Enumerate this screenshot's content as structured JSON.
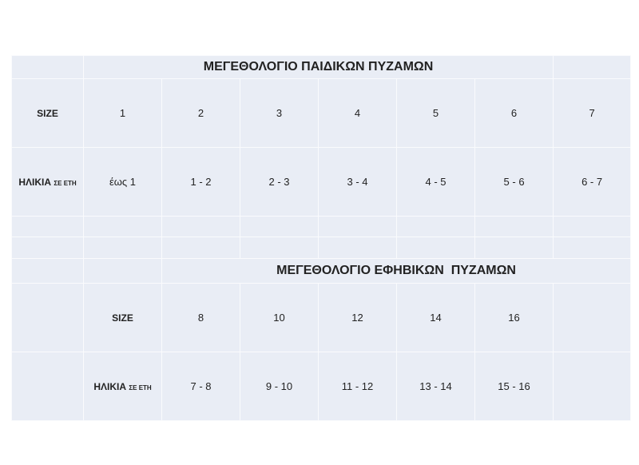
{
  "kids_table": {
    "title": "ΜΕΓΕΘΟΛΟΓΙΟ ΠΑΙΔΙΚΩΝ ΠΥΖΑΜΩΝ",
    "size_label": "SIZE",
    "age_label": "ΗΛΙΚΙΑ",
    "age_label_suffix": "ΣΕ ΕΤΗ",
    "sizes": [
      "1",
      "2",
      "3",
      "4",
      "5",
      "6",
      "7"
    ],
    "ages": [
      "έως  1",
      "1 - 2",
      "2 - 3",
      "3 - 4",
      "4 - 5",
      "5 - 6",
      "6 - 7"
    ]
  },
  "teen_table": {
    "title": "ΜΕΓΕΘΟΛΟΓΙΟ ΕΦΗΒΙΚΩΝ  ΠΥΖΑΜΩΝ",
    "size_label": "SIZE",
    "age_label": "ΗΛΙΚΙΑ",
    "age_label_suffix": "ΣΕ ΕΤΗ",
    "sizes": [
      "8",
      "10",
      "12",
      "14",
      "16"
    ],
    "ages": [
      "7 - 8",
      "9 - 10",
      "11 - 12",
      "13 - 14",
      "15 - 16"
    ]
  },
  "colors": {
    "cell_background": "#e9edf5",
    "grid_line": "#fafbfd"
  }
}
